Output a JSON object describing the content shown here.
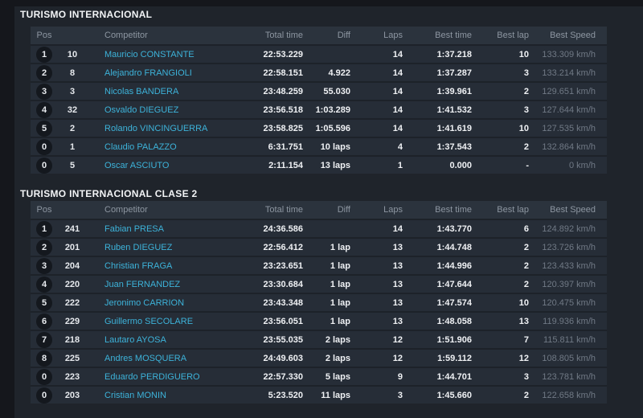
{
  "theme": {
    "background": "#15171c",
    "panel": "#1f242b",
    "header_band": "#2b333d",
    "row": "#262d37",
    "accent_link": "#3db3da",
    "muted_speed": "#707985",
    "text_white": "#eef0f3"
  },
  "columns": [
    "Pos",
    "Competitor",
    "Total time",
    "Diff",
    "Laps",
    "Best time",
    "Best lap",
    "Best Speed"
  ],
  "tables": [
    {
      "title": "TURISMO INTERNACIONAL",
      "rows": [
        {
          "pos": "1",
          "num": "10",
          "name": "Mauricio CONSTANTE",
          "total": "22:53.229",
          "diff": "",
          "laps": "14",
          "best_time": "1:37.218",
          "best_lap": "10",
          "best_speed": "133.309 km/h"
        },
        {
          "pos": "2",
          "num": "8",
          "name": "Alejandro FRANGIOLI",
          "total": "22:58.151",
          "diff": "4.922",
          "laps": "14",
          "best_time": "1:37.287",
          "best_lap": "3",
          "best_speed": "133.214 km/h"
        },
        {
          "pos": "3",
          "num": "3",
          "name": "Nicolas BANDERA",
          "total": "23:48.259",
          "diff": "55.030",
          "laps": "14",
          "best_time": "1:39.961",
          "best_lap": "2",
          "best_speed": "129.651 km/h"
        },
        {
          "pos": "4",
          "num": "32",
          "name": "Osvaldo DIEGUEZ",
          "total": "23:56.518",
          "diff": "1:03.289",
          "laps": "14",
          "best_time": "1:41.532",
          "best_lap": "3",
          "best_speed": "127.644 km/h"
        },
        {
          "pos": "5",
          "num": "2",
          "name": "Rolando VINCINGUERRA",
          "total": "23:58.825",
          "diff": "1:05.596",
          "laps": "14",
          "best_time": "1:41.619",
          "best_lap": "10",
          "best_speed": "127.535 km/h"
        },
        {
          "pos": "0",
          "num": "1",
          "name": "Claudio PALAZZO",
          "total": "6:31.751",
          "diff": "10 laps",
          "laps": "4",
          "best_time": "1:37.543",
          "best_lap": "2",
          "best_speed": "132.864 km/h"
        },
        {
          "pos": "0",
          "num": "5",
          "name": "Oscar ASCIUTO",
          "total": "2:11.154",
          "diff": "13 laps",
          "laps": "1",
          "best_time": "0.000",
          "best_lap": "-",
          "best_speed": "0 km/h"
        }
      ]
    },
    {
      "title": "TURISMO INTERNACIONAL CLASE 2",
      "rows": [
        {
          "pos": "1",
          "num": "241",
          "name": "Fabian PRESA",
          "total": "24:36.586",
          "diff": "",
          "laps": "14",
          "best_time": "1:43.770",
          "best_lap": "6",
          "best_speed": "124.892 km/h"
        },
        {
          "pos": "2",
          "num": "201",
          "name": "Ruben DIEGUEZ",
          "total": "22:56.412",
          "diff": "1 lap",
          "laps": "13",
          "best_time": "1:44.748",
          "best_lap": "2",
          "best_speed": "123.726 km/h"
        },
        {
          "pos": "3",
          "num": "204",
          "name": "Christian FRAGA",
          "total": "23:23.651",
          "diff": "1 lap",
          "laps": "13",
          "best_time": "1:44.996",
          "best_lap": "2",
          "best_speed": "123.433 km/h"
        },
        {
          "pos": "4",
          "num": "220",
          "name": "Juan FERNANDEZ",
          "total": "23:30.684",
          "diff": "1 lap",
          "laps": "13",
          "best_time": "1:47.644",
          "best_lap": "2",
          "best_speed": "120.397 km/h"
        },
        {
          "pos": "5",
          "num": "222",
          "name": "Jeronimo CARRION",
          "total": "23:43.348",
          "diff": "1 lap",
          "laps": "13",
          "best_time": "1:47.574",
          "best_lap": "10",
          "best_speed": "120.475 km/h"
        },
        {
          "pos": "6",
          "num": "229",
          "name": "Guillermo SECOLARE",
          "total": "23:56.051",
          "diff": "1 lap",
          "laps": "13",
          "best_time": "1:48.058",
          "best_lap": "13",
          "best_speed": "119.936 km/h"
        },
        {
          "pos": "7",
          "num": "218",
          "name": "Lautaro AYOSA",
          "total": "23:55.035",
          "diff": "2 laps",
          "laps": "12",
          "best_time": "1:51.906",
          "best_lap": "7",
          "best_speed": "115.811 km/h"
        },
        {
          "pos": "8",
          "num": "225",
          "name": "Andres MOSQUERA",
          "total": "24:49.603",
          "diff": "2 laps",
          "laps": "12",
          "best_time": "1:59.112",
          "best_lap": "12",
          "best_speed": "108.805 km/h"
        },
        {
          "pos": "0",
          "num": "223",
          "name": "Eduardo PERDIGUERO",
          "total": "22:57.330",
          "diff": "5 laps",
          "laps": "9",
          "best_time": "1:44.701",
          "best_lap": "3",
          "best_speed": "123.781 km/h"
        },
        {
          "pos": "0",
          "num": "203",
          "name": "Cristian MONIN",
          "total": "5:23.520",
          "diff": "11 laps",
          "laps": "3",
          "best_time": "1:45.660",
          "best_lap": "2",
          "best_speed": "122.658 km/h"
        }
      ]
    }
  ]
}
